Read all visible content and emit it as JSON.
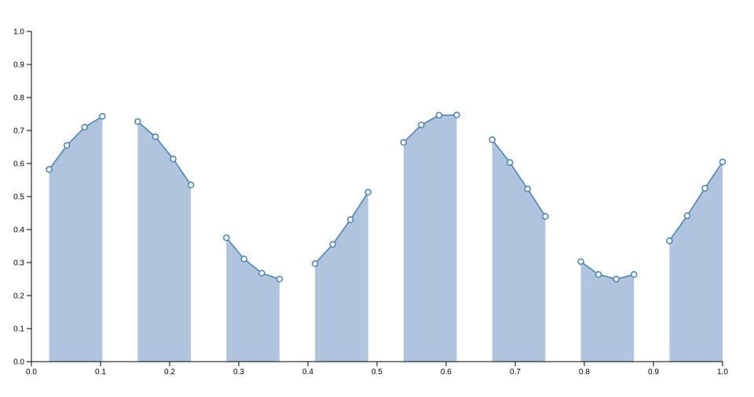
{
  "chart_data": {
    "type": "area",
    "title": "",
    "xlabel": "",
    "ylabel": "",
    "xlim": [
      0,
      1
    ],
    "ylim": [
      0,
      1
    ],
    "grid": false,
    "x_ticks": [
      "0.0",
      "0.1",
      "0.2",
      "0.3",
      "0.4",
      "0.5",
      "0.6",
      "0.7",
      "0.8",
      "0.9",
      "1.0"
    ],
    "y_ticks": [
      "0.0",
      "0.1",
      "0.2",
      "0.3",
      "0.4",
      "0.5",
      "0.6",
      "0.7",
      "0.8",
      "0.9",
      "1.0"
    ],
    "colors": {
      "area": "#b0c4de",
      "line": "#4682b4",
      "point_fill": "#ffffff",
      "point_stroke": "#4682b4"
    },
    "segments": [
      {
        "x": [
          0.0256,
          0.0513,
          0.0769,
          0.1026
        ],
        "y": [
          0.582,
          0.655,
          0.71,
          0.743
        ]
      },
      {
        "x": [
          0.1538,
          0.1795,
          0.2051,
          0.2308
        ],
        "y": [
          0.727,
          0.681,
          0.614,
          0.535
        ]
      },
      {
        "x": [
          0.2821,
          0.3077,
          0.3333,
          0.359
        ],
        "y": [
          0.375,
          0.311,
          0.268,
          0.25
        ]
      },
      {
        "x": [
          0.4103,
          0.4359,
          0.4615,
          0.4872
        ],
        "y": [
          0.297,
          0.355,
          0.43,
          0.513
        ]
      },
      {
        "x": [
          0.5385,
          0.5641,
          0.5897,
          0.6154
        ],
        "y": [
          0.664,
          0.717,
          0.746,
          0.747
        ]
      },
      {
        "x": [
          0.6667,
          0.6923,
          0.7179,
          0.7436
        ],
        "y": [
          0.672,
          0.603,
          0.523,
          0.44
        ]
      },
      {
        "x": [
          0.7949,
          0.8205,
          0.8462,
          0.8718
        ],
        "y": [
          0.303,
          0.264,
          0.25,
          0.264
        ]
      },
      {
        "x": [
          0.9231,
          0.9487,
          0.9744,
          1.0
        ],
        "y": [
          0.366,
          0.442,
          0.525,
          0.605
        ]
      }
    ]
  }
}
